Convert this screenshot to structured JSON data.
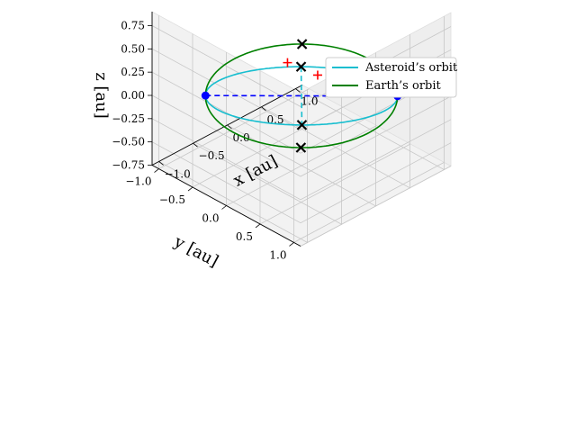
{
  "chart_data": {
    "type": "line3d",
    "title": "",
    "xlabel": "$x$ [au]",
    "ylabel": "$y$ [au]",
    "zlabel": "$z$ [au]",
    "xlabel_text": "x [au]",
    "ylabel_text": "y [au]",
    "zlabel_text": "z [au]",
    "xlim": [
      -1.1,
      1.1
    ],
    "ylim": [
      -1.1,
      1.1
    ],
    "zlim": [
      -0.75,
      0.9
    ],
    "x_ticks": [
      -1.0,
      -0.5,
      0.0,
      0.5,
      1.0
    ],
    "x_tick_labels": [
      "−1.0",
      "−0.5",
      "0.0",
      "0.5",
      "1.0"
    ],
    "y_ticks": [
      -1.0,
      -0.5,
      0.0,
      0.5,
      1.0
    ],
    "y_tick_labels": [
      "−1.0",
      "−0.5",
      "0.0",
      "0.5",
      "1.0"
    ],
    "z_ticks": [
      -0.75,
      -0.5,
      -0.25,
      0.0,
      0.25,
      0.5,
      0.75
    ],
    "z_tick_labels": [
      "−0.75",
      "−0.50",
      "−0.25",
      "0.00",
      "0.25",
      "0.50",
      "0.75"
    ],
    "grid": true,
    "view": {
      "elev_deg": 20,
      "azim_deg": -135
    },
    "legend_position": "upper right",
    "series": [
      {
        "name": "Asteroid's orbit",
        "name_display": "Asteroid’s orbit",
        "type": "ellipse",
        "color": "#17becf",
        "style": "solid",
        "semi_major_axis_au": 1.0,
        "eccentricity": 0.0,
        "inclination_deg": 45,
        "ascending_node_deg": 45
      },
      {
        "name": "Earth's orbit",
        "name_display": "Earth’s orbit",
        "type": "ellipse",
        "color": "#008000",
        "style": "solid",
        "semi_major_axis_au": 1.0,
        "eccentricity": 0.0,
        "inclination_deg": 0,
        "ascending_node_deg": 0
      }
    ],
    "lines": [
      {
        "role": "line of nodes",
        "color": "#0000ff",
        "style": "dashed",
        "from": [
          -0.7071,
          -0.7071,
          0.0
        ],
        "to": [
          0.7071,
          0.7071,
          0.0
        ]
      },
      {
        "role": "asteroid apsidal line",
        "color": "#17becf",
        "style": "dashed",
        "from": [
          -0.5,
          0.5,
          0.7071
        ],
        "to": [
          0.5,
          -0.5,
          -0.7071
        ]
      }
    ],
    "markers": [
      {
        "role": "node",
        "symbol": "circle",
        "color": "#0000ff",
        "position": [
          0.7071,
          0.7071,
          0.0
        ]
      },
      {
        "role": "node",
        "symbol": "circle",
        "color": "#0000ff",
        "position": [
          -0.7071,
          -0.7071,
          0.0
        ]
      },
      {
        "role": "asteroid point",
        "symbol": "x",
        "color": "#000000",
        "position": [
          -0.5,
          0.5,
          0.7071
        ]
      },
      {
        "role": "asteroid point",
        "symbol": "x",
        "color": "#000000",
        "position": [
          0.5,
          -0.5,
          -0.7071
        ]
      },
      {
        "role": "earth point",
        "symbol": "x",
        "color": "#000000",
        "position": [
          -0.7071,
          0.7071,
          0.0
        ]
      },
      {
        "role": "earth point",
        "symbol": "x",
        "color": "#000000",
        "position": [
          0.7071,
          -0.7071,
          0.0
        ]
      },
      {
        "role": "reference point",
        "symbol": "plus",
        "color": "#ff0000",
        "position": [
          -0.6,
          0.4,
          0.75
        ]
      },
      {
        "role": "reference point",
        "symbol": "plus",
        "color": "#ff0000",
        "position": [
          0.78,
          -0.55,
          -0.3
        ]
      },
      {
        "role": "reference point",
        "symbol": "plus",
        "color": "#ff0000",
        "position": [
          0.72,
          0.69,
          0.02
        ]
      }
    ]
  }
}
